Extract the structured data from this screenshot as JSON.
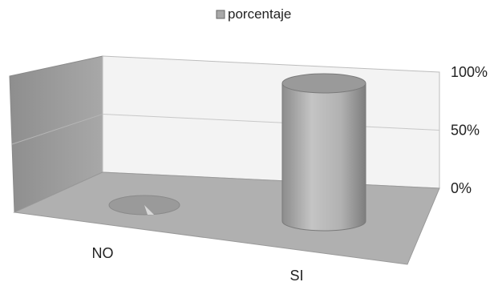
{
  "chart_data": {
    "type": "bar",
    "style": "3d-cylinder",
    "categories": [
      "NO",
      "SI"
    ],
    "series": [
      {
        "name": "porcentaje",
        "values": [
          0,
          100
        ]
      }
    ],
    "legend": {
      "position": "top",
      "entries": [
        "porcentaje"
      ]
    },
    "yticks": [
      "0%",
      "50%",
      "100%"
    ],
    "ylim": [
      0,
      100
    ],
    "grid": true,
    "colors": {
      "series": "#a8a8a8",
      "back_wall": "#f2f2f2",
      "side_wall": "#9c9c9c",
      "floor": "#b0b0b0"
    }
  }
}
